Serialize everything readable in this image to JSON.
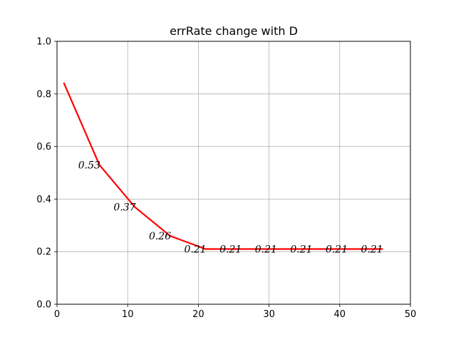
{
  "chart_data": {
    "type": "line",
    "title": "errRate change with D",
    "xlabel": "",
    "ylabel": "",
    "xlim": [
      0,
      50
    ],
    "ylim": [
      0.0,
      1.0
    ],
    "grid": true,
    "x_ticks": [
      0,
      10,
      20,
      30,
      40,
      50
    ],
    "x_tick_labels": [
      "0",
      "10",
      "20",
      "30",
      "40",
      "50"
    ],
    "y_ticks": [
      0.0,
      0.2,
      0.4,
      0.6,
      0.8,
      1.0
    ],
    "y_tick_labels": [
      "0.0",
      "0.2",
      "0.4",
      "0.6",
      "0.8",
      "1.0"
    ],
    "series": [
      {
        "color": "#ff0000",
        "x": [
          1,
          6,
          11,
          16,
          21,
          26,
          31,
          36,
          41,
          46
        ],
        "values": [
          0.84,
          0.53,
          0.37,
          0.26,
          0.21,
          0.21,
          0.21,
          0.21,
          0.21,
          0.21
        ]
      }
    ],
    "annotations": [
      {
        "x": 3,
        "y": 0.53,
        "text": "0.53"
      },
      {
        "x": 8,
        "y": 0.37,
        "text": "0.37"
      },
      {
        "x": 13,
        "y": 0.26,
        "text": "0.26"
      },
      {
        "x": 18,
        "y": 0.21,
        "text": "0.21"
      },
      {
        "x": 23,
        "y": 0.21,
        "text": "0.21"
      },
      {
        "x": 28,
        "y": 0.21,
        "text": "0.21"
      },
      {
        "x": 33,
        "y": 0.21,
        "text": "0.21"
      },
      {
        "x": 38,
        "y": 0.21,
        "text": "0.21"
      },
      {
        "x": 43,
        "y": 0.21,
        "text": "0.21"
      }
    ]
  }
}
